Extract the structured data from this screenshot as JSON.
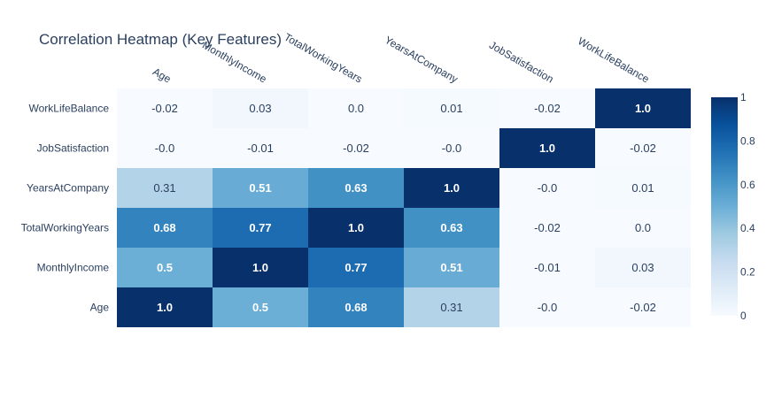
{
  "chart_data": {
    "type": "heatmap",
    "title": "Correlation Heatmap (Key Features)",
    "x_categories": [
      "Age",
      "MonthlyIncome",
      "TotalWorkingYears",
      "YearsAtCompany",
      "JobSatisfaction",
      "WorkLifeBalance"
    ],
    "y_categories": [
      "Age",
      "MonthlyIncome",
      "TotalWorkingYears",
      "YearsAtCompany",
      "JobSatisfaction",
      "WorkLifeBalance"
    ],
    "values": [
      [
        1.0,
        0.5,
        0.68,
        0.31,
        -0.0,
        -0.02
      ],
      [
        0.5,
        1.0,
        0.77,
        0.51,
        -0.01,
        0.03
      ],
      [
        0.68,
        0.77,
        1.0,
        0.63,
        -0.02,
        0.0
      ],
      [
        0.31,
        0.51,
        0.63,
        1.0,
        -0.0,
        0.01
      ],
      [
        -0.0,
        -0.01,
        -0.02,
        -0.0,
        1.0,
        -0.02
      ],
      [
        -0.02,
        0.03,
        0.0,
        0.01,
        -0.02,
        1.0
      ]
    ],
    "value_labels": [
      [
        "1.0",
        "0.5",
        "0.68",
        "0.31",
        "-0.0",
        "-0.02"
      ],
      [
        "0.5",
        "1.0",
        "0.77",
        "0.51",
        "-0.01",
        "0.03"
      ],
      [
        "0.68",
        "0.77",
        "1.0",
        "0.63",
        "-0.02",
        "0.0"
      ],
      [
        "0.31",
        "0.51",
        "0.63",
        "1.0",
        "-0.0",
        "0.01"
      ],
      [
        "-0.0",
        "-0.01",
        "-0.02",
        "-0.0",
        "1.0",
        "-0.02"
      ],
      [
        "-0.02",
        "0.03",
        "0.0",
        "0.01",
        "-0.02",
        "1.0"
      ]
    ],
    "colorscale": "Blues",
    "colorbar": {
      "range": [
        0,
        1
      ],
      "tick_labels": [
        "0",
        "0.2",
        "0.4",
        "0.6",
        "0.8",
        "1"
      ]
    },
    "x_axis_side": "top",
    "grid": false,
    "legend": "colorbar-right"
  }
}
